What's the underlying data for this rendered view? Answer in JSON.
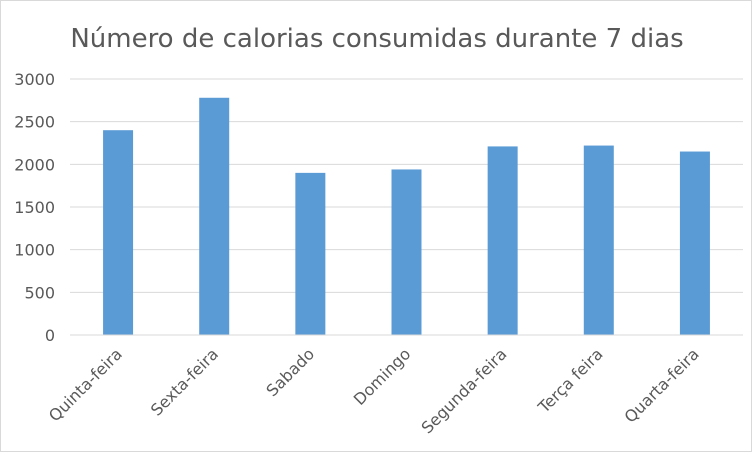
{
  "chart_data": {
    "type": "bar",
    "title": "Número de calorias consumidas durante 7 dias",
    "xlabel": "",
    "ylabel": "",
    "categories": [
      "Quinta-feira",
      "Sexta-feira",
      "Sabado",
      "Domingo",
      "Segunda-feira",
      "Terça feira",
      "Quarta-feira"
    ],
    "values": [
      2400,
      2780,
      1900,
      1940,
      2210,
      2220,
      2150
    ],
    "ylim": [
      0,
      3000
    ],
    "yticks": [
      "0",
      "500",
      "1000",
      "1500",
      "2000",
      "2500",
      "3000"
    ],
    "grid": true,
    "legend": "none",
    "bar_color": "#5b9bd5",
    "grid_color": "#d9d9d9",
    "text_color": "#595959"
  }
}
